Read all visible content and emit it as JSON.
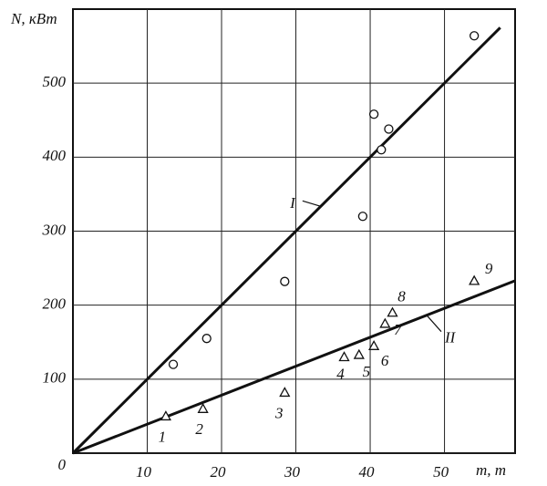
{
  "chart_data": {
    "type": "scatter",
    "y_label": "N, кВт",
    "x_label": "m, т",
    "xlim": [
      0,
      59.5
    ],
    "ylim": [
      0,
      600
    ],
    "xticks": [
      10,
      20,
      30,
      40,
      50
    ],
    "yticks": [
      0,
      100,
      200,
      300,
      400,
      500
    ],
    "grid": true,
    "series": [
      {
        "name": "I",
        "marker": "circle",
        "color": "#111",
        "x": [
          13.5,
          18,
          28.5,
          39,
          40.5,
          41.5,
          42.5,
          54
        ],
        "values": [
          120,
          155,
          232,
          320,
          458,
          410,
          438,
          564
        ],
        "line": {
          "x": [
            0,
            57.5
          ],
          "values": [
            0,
            575
          ]
        }
      },
      {
        "name": "II",
        "marker": "triangle",
        "color": "#111",
        "x": [
          12.5,
          17.5,
          28.5,
          36.5,
          38.5,
          40.5,
          42,
          43,
          54
        ],
        "values": [
          50,
          60,
          82,
          130,
          133,
          145,
          175,
          190,
          233
        ],
        "point_labels": [
          "1",
          "2",
          "3",
          "4",
          "5",
          "6",
          "7",
          "8",
          "9"
        ],
        "line": {
          "x": [
            0,
            59.5
          ],
          "values": [
            0,
            233
          ]
        }
      }
    ]
  }
}
